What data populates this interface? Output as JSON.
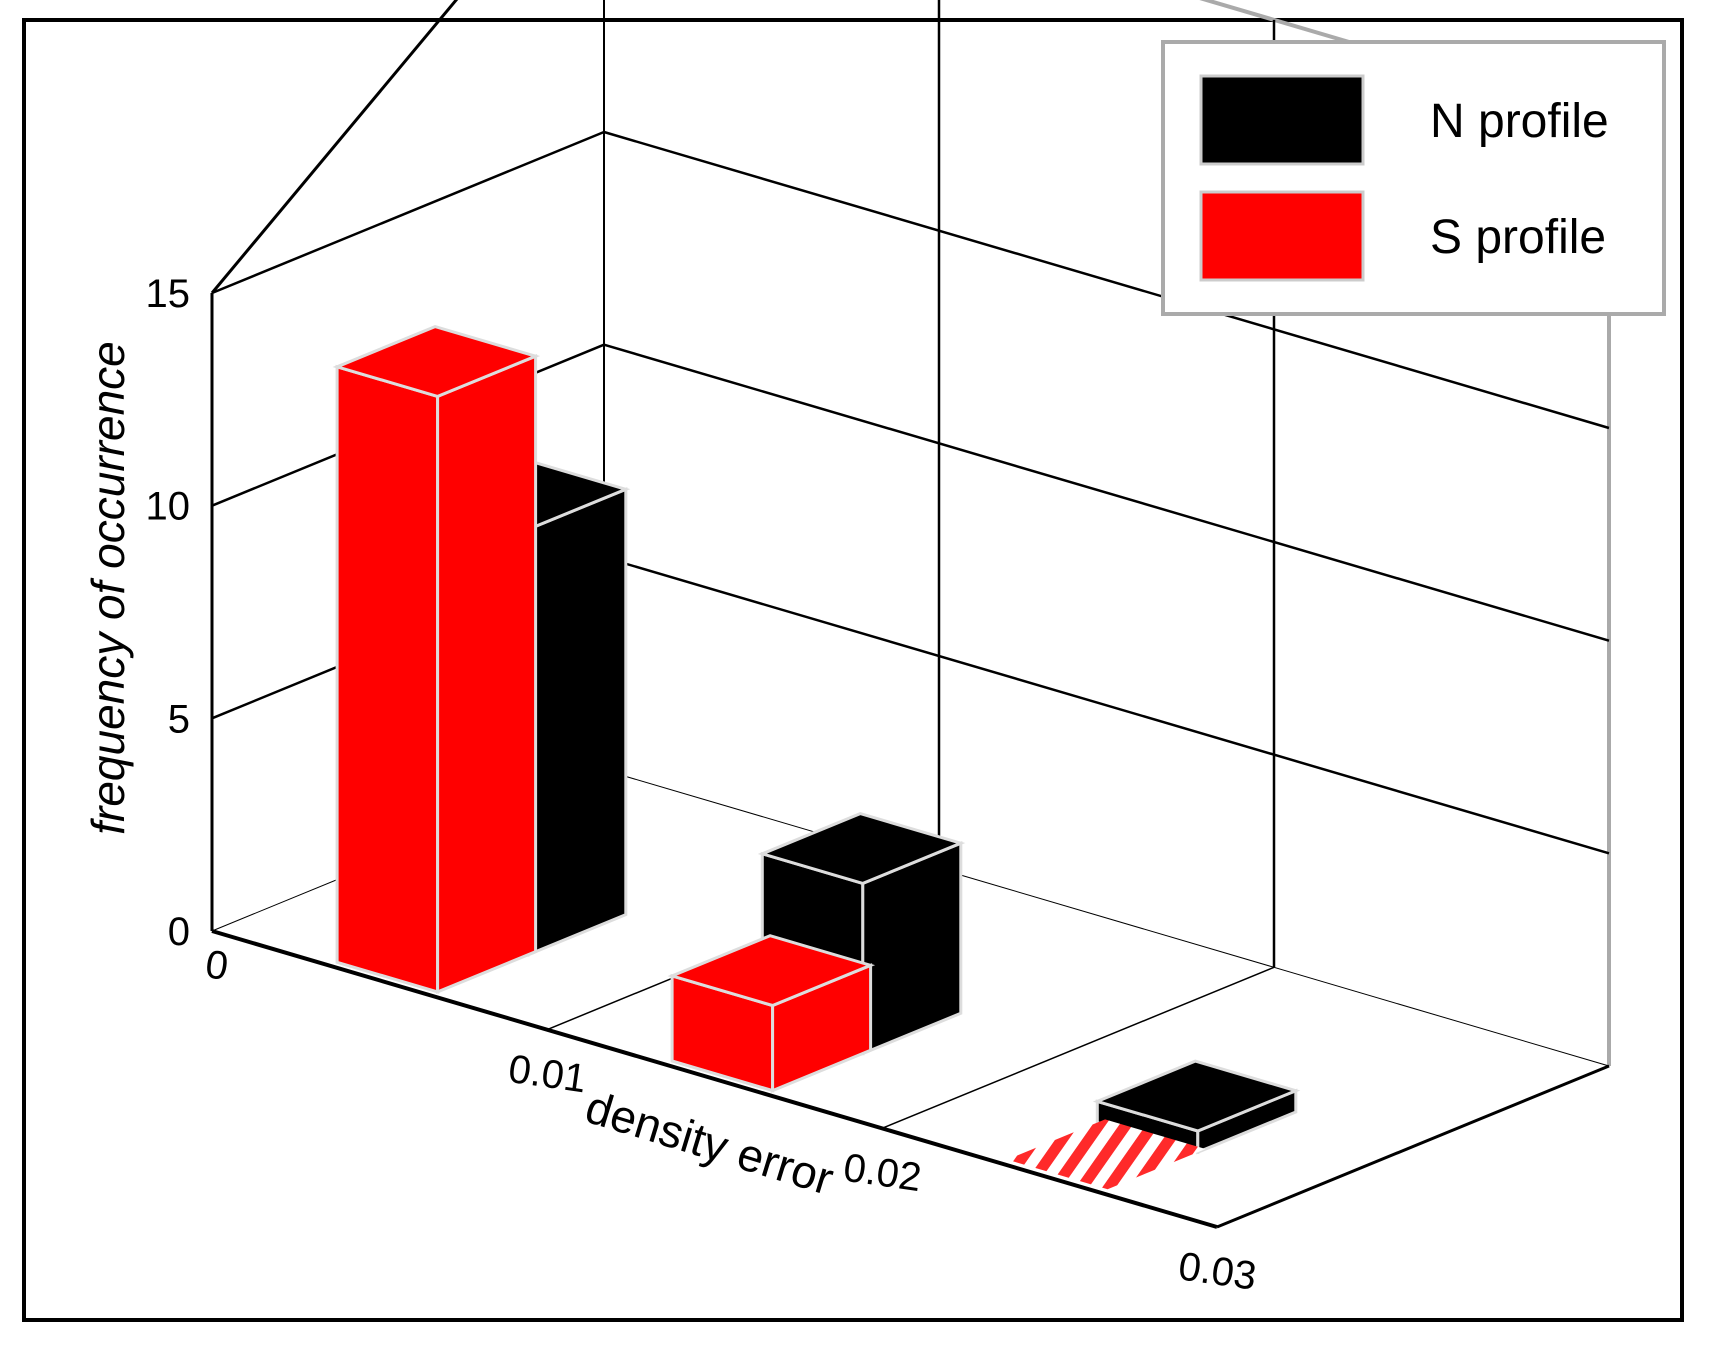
{
  "chart_data": {
    "type": "bar",
    "subtype": "3d-bar",
    "title": "",
    "xlabel": "density error",
    "ylabel": "frequency of occurrence",
    "x_ticks": [
      "0",
      "0.01",
      "0.02",
      "0.03"
    ],
    "y_ticks": [
      "0",
      "5",
      "10",
      "15"
    ],
    "ylim": [
      0,
      15
    ],
    "xlim": [
      0,
      0.03
    ],
    "bin_centers": [
      0.005,
      0.015,
      0.025
    ],
    "series": [
      {
        "name": "N profile",
        "color": "#000000",
        "values": [
          10,
          4,
          0.5
        ]
      },
      {
        "name": "S profile",
        "color": "#ff0000",
        "values": [
          14,
          2,
          0
        ]
      }
    ],
    "grid": true,
    "legend": {
      "placement": "top-right",
      "entries": [
        "N profile",
        "S profile"
      ]
    }
  }
}
